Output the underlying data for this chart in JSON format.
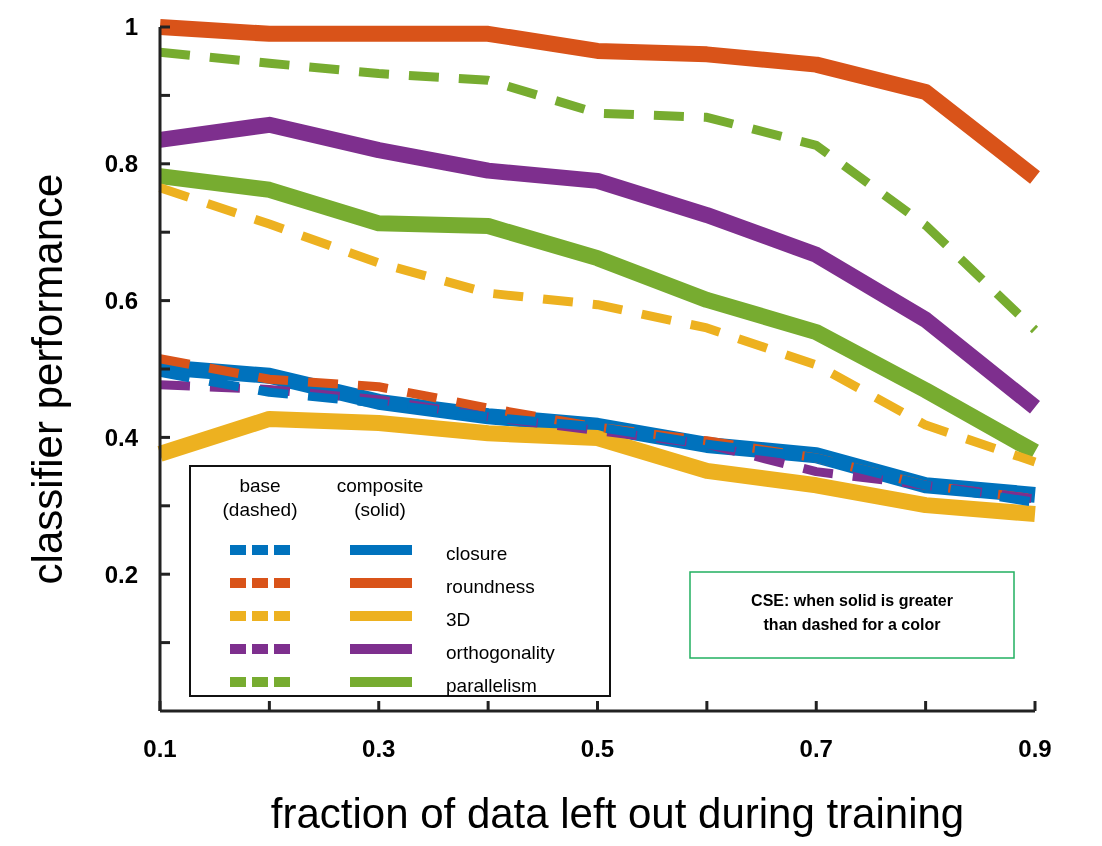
{
  "chart_data": {
    "type": "line",
    "xlabel": "fraction of data left out during training",
    "ylabel": "classifier performance",
    "x": [
      0.1,
      0.2,
      0.3,
      0.4,
      0.5,
      0.6,
      0.7,
      0.8,
      0.9
    ],
    "xlim": [
      0.1,
      0.9
    ],
    "xticks": [
      0.1,
      {
        "value": 0.2,
        "label": null
      },
      0.3,
      {
        "value": 0.4,
        "label": null
      },
      0.5,
      {
        "value": 0.6,
        "label": null
      },
      0.7,
      {
        "value": 0.8,
        "label": null
      },
      0.9
    ],
    "ylim": [
      0,
      1
    ],
    "yticks": [
      {
        "value": 0.1,
        "label": null
      },
      0.2,
      {
        "value": 0.3,
        "label": null
      },
      0.4,
      {
        "value": 0.5,
        "label": null
      },
      0.6,
      {
        "value": 0.7,
        "label": null
      },
      0.8,
      {
        "value": 0.9,
        "label": null
      },
      1
    ],
    "grid": false,
    "legend": "bottom left",
    "marker": "none",
    "series": [
      {
        "name": "closure",
        "color": "#0072bd",
        "line_style": "solid",
        "values": [
          0.503,
          0.49,
          0.452,
          0.431,
          0.417,
          0.389,
          0.374,
          0.33,
          0.316
        ]
      },
      {
        "name": "roundness",
        "color": "#d95319",
        "line_style": "solid",
        "values": [
          1.0,
          0.99,
          0.99,
          0.99,
          0.965,
          0.96,
          0.945,
          0.905,
          0.78
        ]
      },
      {
        "name": "3D",
        "color": "#edb120",
        "line_style": "solid",
        "values": [
          0.376,
          0.427,
          0.421,
          0.406,
          0.399,
          0.351,
          0.33,
          0.301,
          0.288
        ]
      },
      {
        "name": "orthogonality",
        "color": "#7e2f8e",
        "line_style": "solid",
        "values": [
          0.835,
          0.857,
          0.82,
          0.79,
          0.775,
          0.725,
          0.667,
          0.572,
          0.444
        ]
      },
      {
        "name": "parallelism",
        "color": "#77ac30",
        "line_style": "solid",
        "values": [
          0.782,
          0.762,
          0.713,
          0.709,
          0.662,
          0.601,
          0.554,
          0.469,
          0.379
        ]
      },
      {
        "color": "#d95319",
        "line_style": "dashed",
        "values": [
          0.515,
          0.485,
          0.474,
          0.443,
          0.415,
          0.395,
          0.37,
          0.33,
          0.31
        ]
      },
      {
        "color": "#edb120",
        "line_style": "dashed",
        "values": [
          0.765,
          0.712,
          0.655,
          0.611,
          0.594,
          0.56,
          0.506,
          0.418,
          0.364
        ]
      },
      {
        "color": "#7e2f8e",
        "line_style": "dashed",
        "values": [
          0.477,
          0.47,
          0.455,
          0.43,
          0.41,
          0.39,
          0.35,
          0.33,
          0.31
        ]
      },
      {
        "color": "#77ac30",
        "line_style": "dashed",
        "values": [
          0.963,
          0.947,
          0.932,
          0.922,
          0.874,
          0.868,
          0.827,
          0.71,
          0.557
        ]
      },
      {
        "color": "#0072bd",
        "line_style": "dashed",
        "values": [
          0.495,
          0.466,
          0.45,
          0.43,
          0.415,
          0.39,
          0.37,
          0.33,
          0.305
        ]
      }
    ],
    "annotations": [
      "base (dashed)",
      "composite (solid)",
      "CSE: when solid is greater than dashed for a color"
    ]
  }
}
